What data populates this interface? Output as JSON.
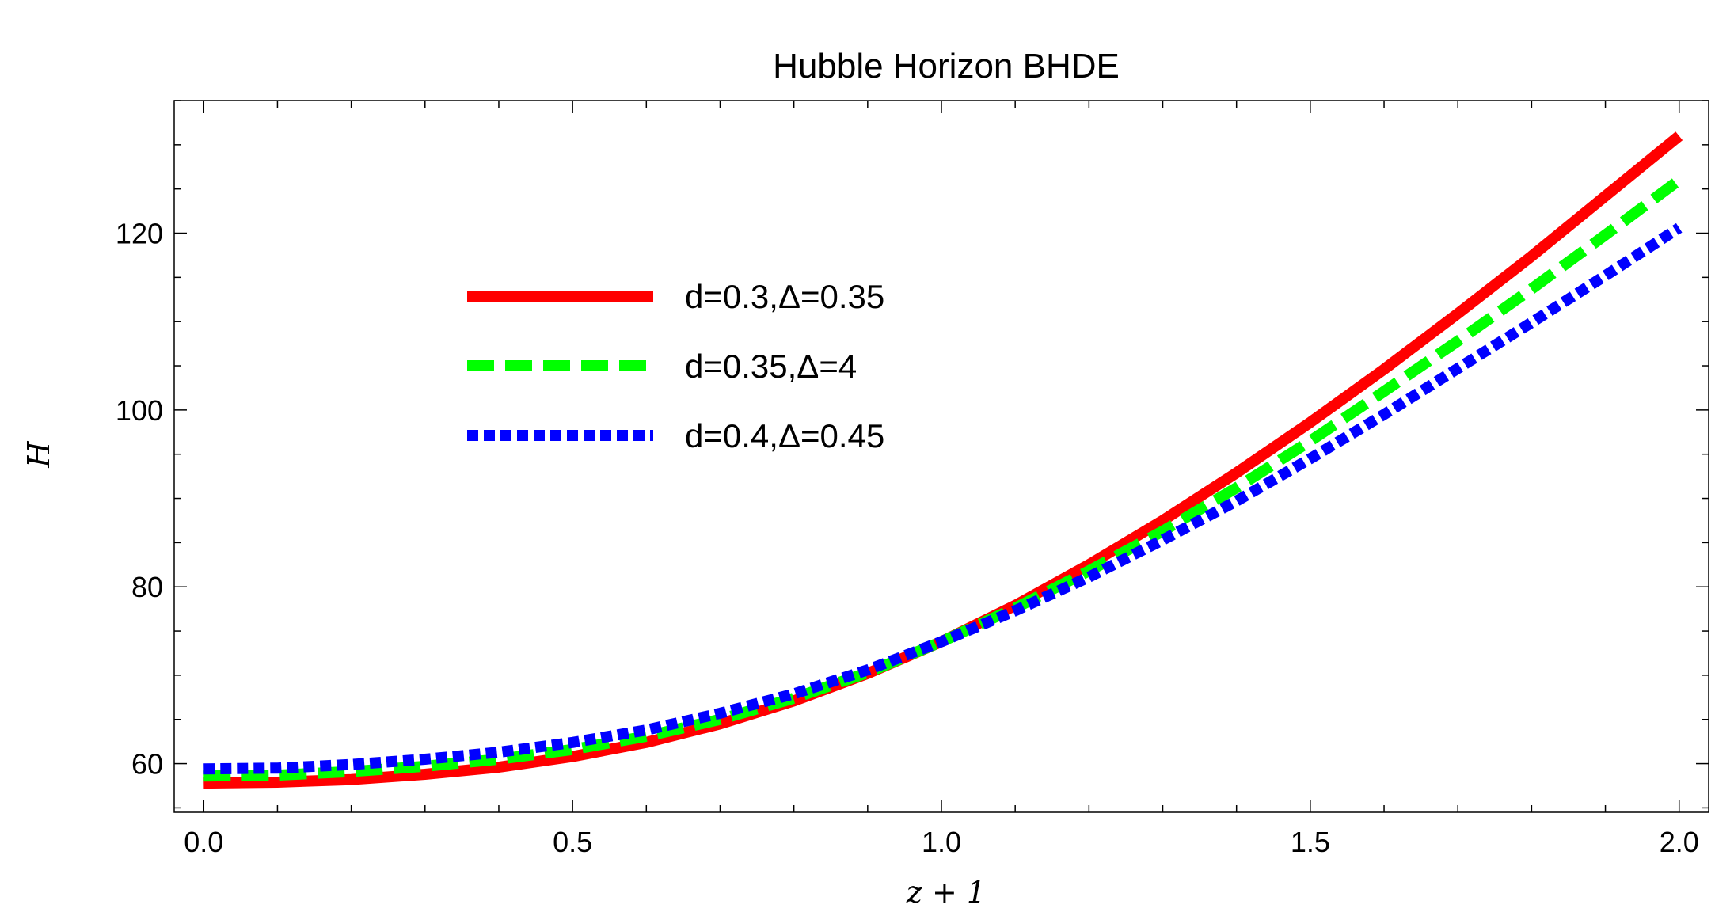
{
  "chart_data": {
    "type": "line",
    "title": "Hubble Horizon BHDE",
    "xlabel": "z + 1",
    "ylabel": "H",
    "xlim": [
      -0.04,
      2.04
    ],
    "ylim": [
      54.5,
      135
    ],
    "x_ticks": [
      0.0,
      0.5,
      1.0,
      1.5,
      2.0
    ],
    "x_tick_labels": [
      "0.0",
      "0.5",
      "1.0",
      "1.5",
      "2.0"
    ],
    "y_ticks": [
      60,
      80,
      100,
      120
    ],
    "y_tick_labels": [
      "60",
      "80",
      "100",
      "120"
    ],
    "grid": false,
    "legend_position": "upper-left",
    "x": [
      0.0,
      0.1,
      0.2,
      0.3,
      0.4,
      0.5,
      0.6,
      0.7,
      0.8,
      0.9,
      1.0,
      1.1,
      1.2,
      1.3,
      1.4,
      1.5,
      1.6,
      1.7,
      1.8,
      1.9,
      2.0
    ],
    "series": [
      {
        "name": "d=0.3,Δ=0.35",
        "color": "#ff0000",
        "style": "solid",
        "values": [
          57.8,
          57.9,
          58.2,
          58.8,
          59.6,
          60.8,
          62.4,
          64.5,
          67.1,
          70.2,
          73.8,
          77.9,
          82.5,
          87.5,
          92.9,
          98.6,
          104.6,
          110.9,
          117.4,
          124.2,
          131.0
        ]
      },
      {
        "name": "d=0.35,Δ=4",
        "color": "#00ff00",
        "style": "dashed",
        "values": [
          58.6,
          58.7,
          59.1,
          59.7,
          60.5,
          61.6,
          63.1,
          65.0,
          67.4,
          70.3,
          73.8,
          77.6,
          81.8,
          86.3,
          91.2,
          96.5,
          102.1,
          107.8,
          113.7,
          119.8,
          126.0
        ]
      },
      {
        "name": "d=0.4,Δ=0.45",
        "color": "#0000ff",
        "style": "dotted",
        "values": [
          59.4,
          59.5,
          59.9,
          60.5,
          61.3,
          62.4,
          63.8,
          65.7,
          67.9,
          70.6,
          73.8,
          77.3,
          81.1,
          85.3,
          89.7,
          94.5,
          99.5,
          104.7,
          109.9,
          115.2,
          120.6
        ]
      }
    ]
  }
}
